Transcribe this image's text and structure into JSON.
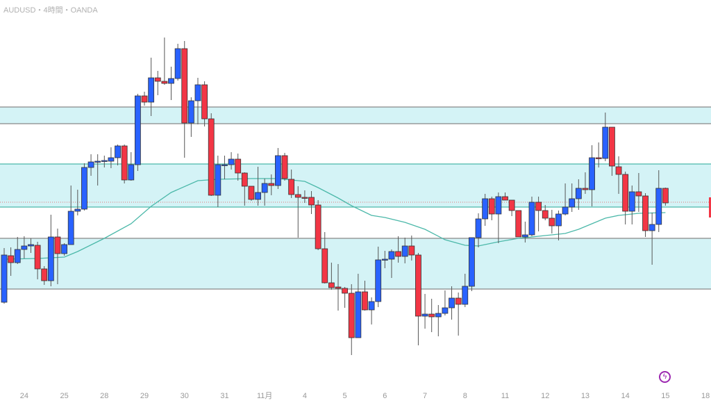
{
  "header": {
    "title": "AUDUSD・4時間・OANDA"
  },
  "colors": {
    "up": "#2962ff",
    "down": "#f23645",
    "zone_fill": "#d4f3f6",
    "ma": "#4bb8a9",
    "zone_border_gray": "#888888",
    "zone_border_teal": "#4bb8a9",
    "price_line": "#e57373",
    "bolt": "#9c27b0"
  },
  "icons": {
    "bolt": "lightning-icon"
  },
  "chart_data": {
    "type": "candlestick",
    "title": "AUDUSD・4時間・OANDA",
    "xlabel": "",
    "ylabel": "",
    "ylim": [
      0.6584,
      0.67
    ],
    "x_tick_labels": [
      "24",
      "25",
      "28",
      "29",
      "30",
      "31",
      "11月",
      "4",
      "5",
      "6",
      "7",
      "8",
      "11",
      "12",
      "13",
      "14",
      "15",
      "18"
    ],
    "x_tick_candle_index": [
      3,
      9,
      15,
      21,
      27,
      33,
      39,
      45,
      51,
      57,
      63,
      69,
      75,
      81,
      87,
      93,
      99,
      105
    ],
    "current_price": 0.66418,
    "zones": [
      {
        "top": 0.66692,
        "bottom": 0.66644,
        "border": "gray"
      },
      {
        "top": 0.66528,
        "bottom": 0.66404,
        "border": "teal"
      },
      {
        "top": 0.66314,
        "bottom": 0.66168,
        "border": "gray"
      }
    ],
    "moving_average": [
      [
        0,
        0.66254
      ],
      [
        5,
        0.66256
      ],
      [
        9,
        0.6626
      ],
      [
        11,
        0.66276
      ],
      [
        15,
        0.66314
      ],
      [
        19,
        0.66356
      ],
      [
        22,
        0.66406
      ],
      [
        25,
        0.66446
      ],
      [
        29,
        0.6648
      ],
      [
        32,
        0.66484
      ],
      [
        37,
        0.66486
      ],
      [
        41,
        0.66486
      ],
      [
        45,
        0.66478
      ],
      [
        47,
        0.6646
      ],
      [
        50,
        0.6643
      ],
      [
        52,
        0.66408
      ],
      [
        55,
        0.6638
      ],
      [
        57,
        0.66374
      ],
      [
        60,
        0.6636
      ],
      [
        63,
        0.6634
      ],
      [
        66,
        0.6631
      ],
      [
        69,
        0.66294
      ],
      [
        71,
        0.66292
      ],
      [
        74,
        0.66304
      ],
      [
        77,
        0.66314
      ],
      [
        81,
        0.66322
      ],
      [
        84,
        0.66328
      ],
      [
        86,
        0.6634
      ],
      [
        88,
        0.66356
      ],
      [
        90,
        0.66372
      ],
      [
        92,
        0.6638
      ],
      [
        95,
        0.66386
      ],
      [
        99,
        0.66388
      ]
    ],
    "candles_ohlc": [
      [
        0.6613,
        0.66286,
        0.66126,
        0.66266
      ],
      [
        0.66264,
        0.66288,
        0.66206,
        0.66244
      ],
      [
        0.66244,
        0.66318,
        0.6624,
        0.66282
      ],
      [
        0.66282,
        0.6632,
        0.66256,
        0.66292
      ],
      [
        0.66292,
        0.66314,
        0.66272,
        0.66296
      ],
      [
        0.66294,
        0.66304,
        0.66196,
        0.66226
      ],
      [
        0.66226,
        0.66234,
        0.6618,
        0.66192
      ],
      [
        0.66192,
        0.66382,
        0.66176,
        0.66318
      ],
      [
        0.66318,
        0.66342,
        0.66182,
        0.6627
      ],
      [
        0.6627,
        0.663,
        0.66264,
        0.66296
      ],
      [
        0.66296,
        0.66466,
        0.66296,
        0.66392
      ],
      [
        0.66392,
        0.66454,
        0.6638,
        0.66398
      ],
      [
        0.66398,
        0.6653,
        0.66394,
        0.66518
      ],
      [
        0.66518,
        0.66556,
        0.66494,
        0.66534
      ],
      [
        0.66534,
        0.66556,
        0.66466,
        0.66536
      ],
      [
        0.66536,
        0.66552,
        0.66518,
        0.66538
      ],
      [
        0.66536,
        0.66576,
        0.66516,
        0.66546
      ],
      [
        0.66546,
        0.66584,
        0.66524,
        0.6658
      ],
      [
        0.6658,
        0.66584,
        0.66472,
        0.66482
      ],
      [
        0.66482,
        0.66562,
        0.6648,
        0.66526
      ],
      [
        0.66526,
        0.6673,
        0.66508,
        0.66724
      ],
      [
        0.66724,
        0.66736,
        0.66696,
        0.66706
      ],
      [
        0.66706,
        0.66834,
        0.66666,
        0.66776
      ],
      [
        0.66776,
        0.66796,
        0.66726,
        0.66766
      ],
      [
        0.66766,
        0.66892,
        0.66756,
        0.6676
      ],
      [
        0.6676,
        0.66808,
        0.66712,
        0.66774
      ],
      [
        0.66774,
        0.66874,
        0.66768,
        0.6686
      ],
      [
        0.6686,
        0.66882,
        0.66546,
        0.66646
      ],
      [
        0.66646,
        0.6672,
        0.66606,
        0.6671
      ],
      [
        0.6671,
        0.66776,
        0.66642,
        0.66756
      ],
      [
        0.66756,
        0.66766,
        0.66636,
        0.66658
      ],
      [
        0.66658,
        0.66674,
        0.66436,
        0.66438
      ],
      [
        0.66438,
        0.66552,
        0.66404,
        0.66526
      ],
      [
        0.66524,
        0.66552,
        0.66484,
        0.66526
      ],
      [
        0.66526,
        0.66562,
        0.66512,
        0.66542
      ],
      [
        0.66542,
        0.66558,
        0.6648,
        0.66502
      ],
      [
        0.66502,
        0.66504,
        0.66408,
        0.66464
      ],
      [
        0.66464,
        0.66464,
        0.66422,
        0.66426
      ],
      [
        0.66426,
        0.6652,
        0.66408,
        0.66446
      ],
      [
        0.66446,
        0.66486,
        0.66408,
        0.66472
      ],
      [
        0.66472,
        0.66498,
        0.66438,
        0.66466
      ],
      [
        0.66466,
        0.66574,
        0.66456,
        0.66552
      ],
      [
        0.66552,
        0.6656,
        0.6648,
        0.66486
      ],
      [
        0.66484,
        0.66512,
        0.6643,
        0.6644
      ],
      [
        0.6644,
        0.66464,
        0.66316,
        0.66432
      ],
      [
        0.66432,
        0.66452,
        0.66416,
        0.6643
      ],
      [
        0.66432,
        0.6645,
        0.66384,
        0.6641
      ],
      [
        0.6641,
        0.66424,
        0.6628,
        0.66284
      ],
      [
        0.66284,
        0.66332,
        0.66184,
        0.66186
      ],
      [
        0.66186,
        0.66244,
        0.66166,
        0.66172
      ],
      [
        0.66174,
        0.6624,
        0.66106,
        0.6617
      ],
      [
        0.6617,
        0.66174,
        0.66114,
        0.66156
      ],
      [
        0.66156,
        0.66182,
        0.65978,
        0.66028
      ],
      [
        0.66028,
        0.66212,
        0.66028,
        0.6616
      ],
      [
        0.6616,
        0.66192,
        0.66106,
        0.66108
      ],
      [
        0.66108,
        0.66144,
        0.66066,
        0.66132
      ],
      [
        0.66132,
        0.6629,
        0.66116,
        0.66252
      ],
      [
        0.66252,
        0.66278,
        0.66228,
        0.66254
      ],
      [
        0.66254,
        0.66282,
        0.662,
        0.66276
      ],
      [
        0.66276,
        0.6632,
        0.66244,
        0.66262
      ],
      [
        0.66262,
        0.66316,
        0.66242,
        0.66292
      ],
      [
        0.66292,
        0.66322,
        0.6625,
        0.66266
      ],
      [
        0.66266,
        0.66272,
        0.66006,
        0.6609
      ],
      [
        0.6609,
        0.66154,
        0.66054,
        0.66096
      ],
      [
        0.66096,
        0.6614,
        0.66044,
        0.66088
      ],
      [
        0.66088,
        0.66122,
        0.66032,
        0.66098
      ],
      [
        0.66098,
        0.66164,
        0.66092,
        0.66114
      ],
      [
        0.66114,
        0.66176,
        0.6608,
        0.66142
      ],
      [
        0.66142,
        0.66158,
        0.66034,
        0.66124
      ],
      [
        0.66124,
        0.66212,
        0.66116,
        0.66176
      ],
      [
        0.66176,
        0.66316,
        0.66162,
        0.66316
      ],
      [
        0.66316,
        0.66386,
        0.66288,
        0.6637
      ],
      [
        0.6637,
        0.66442,
        0.6635,
        0.66428
      ],
      [
        0.66428,
        0.66434,
        0.66366,
        0.66384
      ],
      [
        0.66384,
        0.66446,
        0.663,
        0.66434
      ],
      [
        0.66434,
        0.66446,
        0.66424,
        0.66424
      ],
      [
        0.66424,
        0.66424,
        0.66378,
        0.66394
      ],
      [
        0.66394,
        0.66394,
        0.66318,
        0.66318
      ],
      [
        0.66318,
        0.66362,
        0.66302,
        0.66324
      ],
      [
        0.66324,
        0.66434,
        0.6632,
        0.66418
      ],
      [
        0.66418,
        0.66434,
        0.66334,
        0.66394
      ],
      [
        0.66394,
        0.6641,
        0.66366,
        0.66372
      ],
      [
        0.66372,
        0.66396,
        0.66328,
        0.6635
      ],
      [
        0.6635,
        0.66394,
        0.66308,
        0.66384
      ],
      [
        0.66384,
        0.66472,
        0.6638,
        0.66404
      ],
      [
        0.66404,
        0.66472,
        0.6639,
        0.66428
      ],
      [
        0.66428,
        0.66484,
        0.66396,
        0.66458
      ],
      [
        0.66458,
        0.66504,
        0.66442,
        0.66454
      ],
      [
        0.66454,
        0.66582,
        0.66406,
        0.66546
      ],
      [
        0.66546,
        0.6659,
        0.66518,
        0.66544
      ],
      [
        0.66544,
        0.66676,
        0.66536,
        0.66634
      ],
      [
        0.66634,
        0.66634,
        0.66494,
        0.66522
      ],
      [
        0.6652,
        0.6655,
        0.66442,
        0.66498
      ],
      [
        0.66498,
        0.66506,
        0.66354,
        0.66392
      ],
      [
        0.66392,
        0.66466,
        0.66354,
        0.66448
      ],
      [
        0.66448,
        0.66502,
        0.6639,
        0.66436
      ],
      [
        0.66436,
        0.66444,
        0.66318,
        0.66336
      ],
      [
        0.66336,
        0.66388,
        0.66238,
        0.66354
      ],
      [
        0.66354,
        0.6651,
        0.66332,
        0.66458
      ],
      [
        0.66458,
        0.6646,
        0.66408,
        0.66416
      ]
    ]
  }
}
